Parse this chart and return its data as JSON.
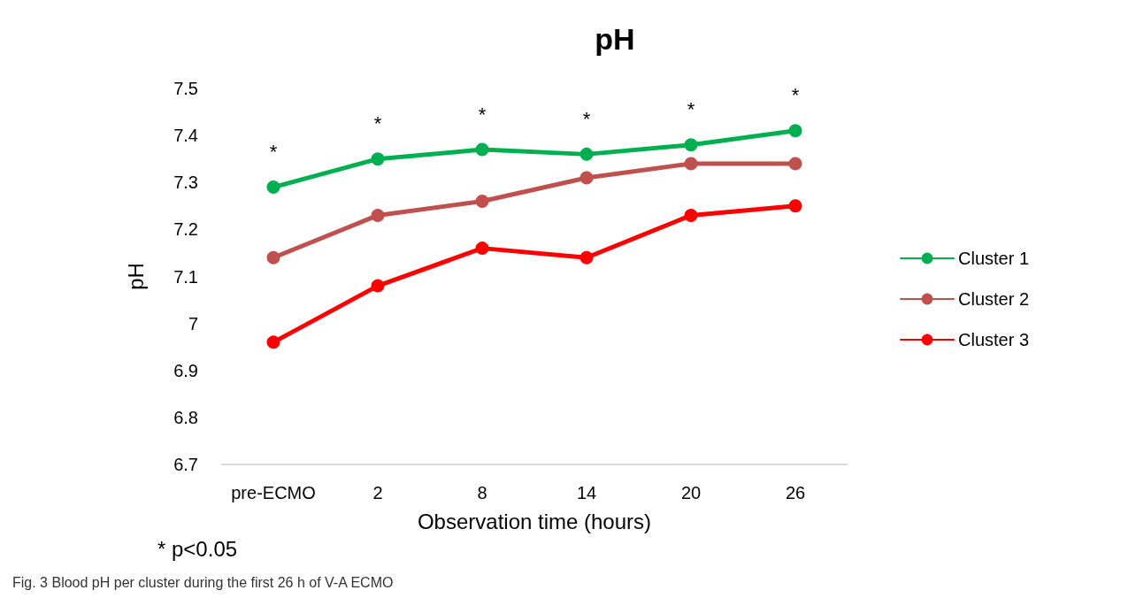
{
  "chart_data": {
    "type": "line",
    "title": "pH",
    "xlabel": "Observation time (hours)",
    "ylabel": "pH",
    "categories": [
      "pre-ECMO",
      "2",
      "8",
      "14",
      "20",
      "26"
    ],
    "series": [
      {
        "name": "Cluster 1",
        "color": "#00b050",
        "values": [
          7.29,
          7.35,
          7.37,
          7.36,
          7.38,
          7.41
        ]
      },
      {
        "name": "Cluster 2",
        "color": "#c0504d",
        "values": [
          7.14,
          7.23,
          7.26,
          7.31,
          7.34,
          7.34
        ]
      },
      {
        "name": "Cluster 3",
        "color": "#ff0000",
        "values": [
          6.96,
          7.08,
          7.16,
          7.14,
          7.23,
          7.25
        ]
      }
    ],
    "ylim": [
      6.7,
      7.5
    ],
    "yticks": [
      6.7,
      6.8,
      6.9,
      7,
      7.1,
      7.2,
      7.3,
      7.4,
      7.5
    ],
    "grid": false,
    "legend": "right",
    "marker": "circle",
    "line_style": "solid",
    "annotations": [
      "*",
      "*",
      "*",
      "*",
      "*",
      "*",
      "* p<0.05",
      "Fig. 3 Blood pH per cluster during the first 26 h of V-A ECMO"
    ]
  }
}
